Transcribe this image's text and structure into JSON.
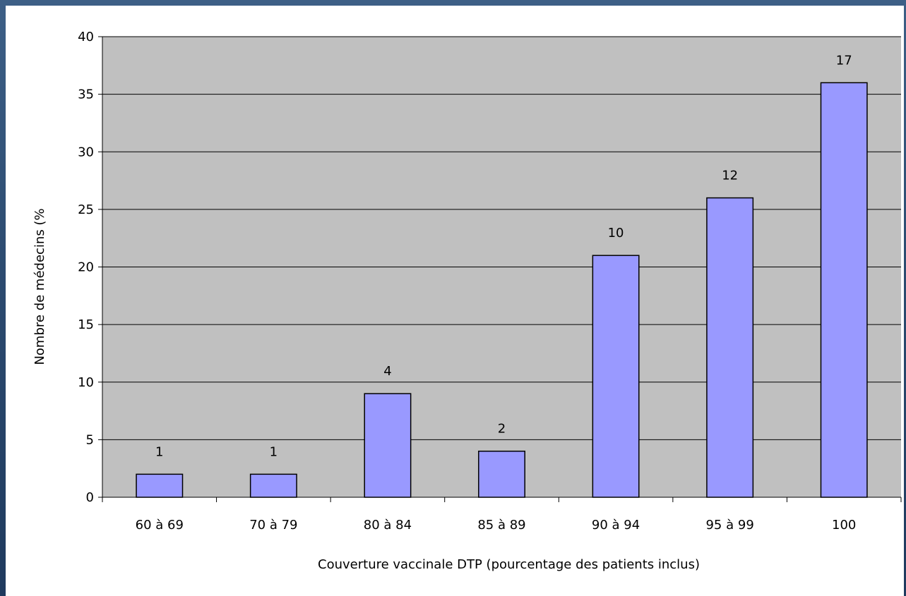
{
  "chart_data": {
    "type": "bar",
    "title": "",
    "xlabel": "Couverture vaccinale DTP  (pourcentage des patients inclus)",
    "ylabel": "Nombre de médecins (%",
    "ylim": [
      0,
      40
    ],
    "yticks": [
      "0",
      "5",
      "10",
      "15",
      "20",
      "25",
      "30",
      "35",
      "40"
    ],
    "categories": [
      "60 à 69",
      "70 à 79",
      "80 à 84",
      "85 à 89",
      "90 à 94",
      "95 à 99",
      "100"
    ],
    "values": [
      2,
      2,
      9,
      4,
      21,
      26,
      36
    ],
    "data_labels": [
      "1",
      "1",
      "4",
      "2",
      "10",
      "12",
      "17"
    ],
    "grid": true,
    "legend": "none",
    "colors": {
      "bar": "#9999ff",
      "plot_background": "#c0c0c0",
      "gridline": "#000000"
    }
  }
}
